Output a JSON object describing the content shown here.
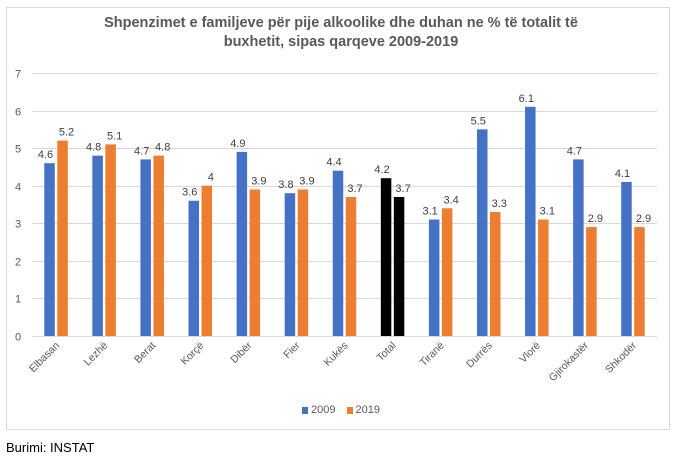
{
  "chart_data": {
    "type": "bar",
    "title": "Shpenzimet e familjeve për pije alkoolike dhe duhan ne % të totalit të buxhetit, sipas qarqeve 2009-2019",
    "title_lines": [
      "Shpenzimet e familjeve për pije alkoolike dhe duhan ne % të totalit të",
      "buxhetit, sipas qarqeve 2009-2019"
    ],
    "xlabel": "",
    "ylabel": "",
    "ylim": [
      0,
      7
    ],
    "yticks": [
      0,
      1,
      2,
      3,
      4,
      5,
      6,
      7
    ],
    "grid": true,
    "legend_position": "bottom",
    "categories": [
      "Elbasan",
      "Lezhë",
      "Berat",
      "Korçë",
      "Dibër",
      "Fier",
      "Kukës",
      "Total",
      "Tiranë",
      "Durrës",
      "Vlorë",
      "Gjirokastër",
      "Shkodër"
    ],
    "series": [
      {
        "name": "2009",
        "color": "#4472C4",
        "values": [
          4.6,
          4.8,
          4.7,
          3.6,
          4.9,
          3.8,
          4.4,
          4.2,
          3.1,
          5.5,
          6.1,
          4.7,
          4.1
        ]
      },
      {
        "name": "2019",
        "color": "#ED7D31",
        "values": [
          5.2,
          5.1,
          4.8,
          4,
          3.9,
          3.9,
          3.7,
          3.7,
          3.4,
          3.3,
          3.1,
          2.9,
          2.9
        ]
      }
    ],
    "highlight": {
      "category": "Total",
      "color": "#000000"
    }
  },
  "legend": {
    "items": [
      {
        "label": "2009",
        "color": "#4472C4"
      },
      {
        "label": "2019",
        "color": "#ED7D31"
      }
    ]
  },
  "source": "Burimi: INSTAT"
}
